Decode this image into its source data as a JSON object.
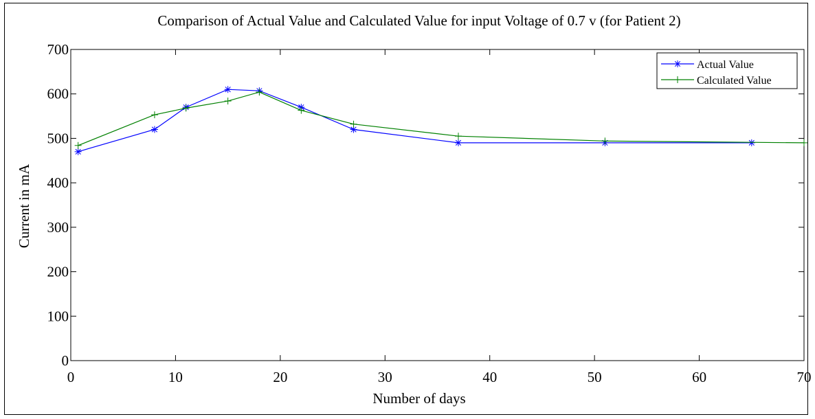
{
  "chart_data": {
    "type": "line",
    "title": "Comparison of Actual Value and Calculated Value for input Voltage of 0.7 v (for Patient 2)",
    "xlabel": "Number of days",
    "ylabel": "Current in mA",
    "xlim": [
      0,
      70
    ],
    "ylim": [
      0,
      700
    ],
    "xticks": [
      0,
      10,
      20,
      30,
      40,
      50,
      60,
      70
    ],
    "yticks": [
      0,
      100,
      200,
      300,
      400,
      500,
      600,
      700
    ],
    "grid": false,
    "legend_position": "top-right",
    "series": [
      {
        "name": "Actual Value",
        "color": "#0000ff",
        "marker": "asterisk",
        "x": [
          0.7,
          8,
          11,
          15,
          18,
          22,
          27,
          37,
          51,
          65
        ],
        "y": [
          470,
          520,
          570,
          610,
          607,
          570,
          520,
          490,
          490,
          490
        ]
      },
      {
        "name": "Calculated Value",
        "color": "#008000",
        "marker": "plus",
        "x": [
          0.7,
          8,
          11,
          15,
          18,
          22,
          27,
          37,
          51,
          70
        ],
        "y": [
          484,
          553,
          568,
          584,
          604,
          563,
          532,
          505,
          494,
          490
        ]
      }
    ]
  }
}
